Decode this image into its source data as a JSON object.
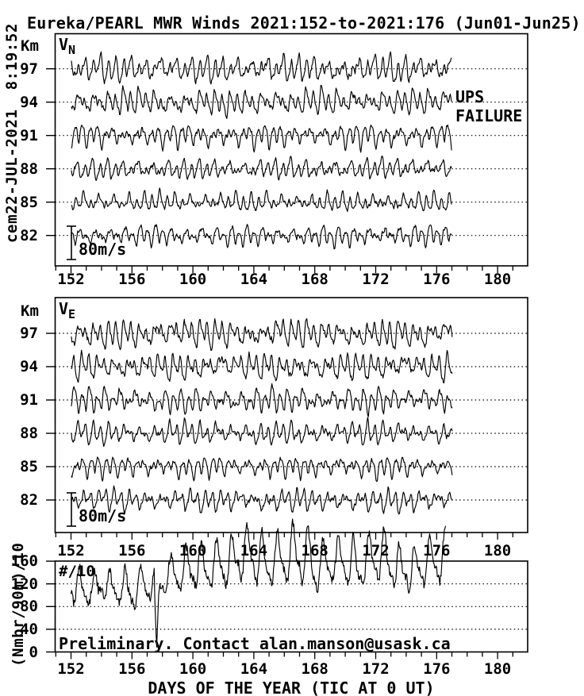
{
  "title": "Eureka/PEARL MWR Winds 2021:152-to-2021:176 (Jun01-Jun25)",
  "created_stamp": "cem22-JUL-2021  8:19:52",
  "x_axis": {
    "label": "DAYS OF THE YEAR (TIC AT 0 UT)",
    "major_ticks": [
      152,
      156,
      160,
      164,
      168,
      172,
      176,
      180
    ],
    "minor_step_days": 1,
    "range_days": [
      150.9,
      182.0
    ]
  },
  "wind_panels": [
    {
      "id": "vn",
      "var_label": "V",
      "var_sub": "N",
      "alt_unit": "Km",
      "altitude_ticks_km": [
        97,
        94,
        91,
        88,
        85,
        82
      ],
      "scale_bar_label": "80m/s",
      "scale_bar_value_m_s": 80,
      "annotation": "UPS\nFAILURE",
      "seed": 7
    },
    {
      "id": "ve",
      "var_label": "V",
      "var_sub": "E",
      "alt_unit": "Km",
      "altitude_ticks_km": [
        97,
        94,
        91,
        88,
        85,
        82
      ],
      "scale_bar_label": "80m/s",
      "scale_bar_value_m_s": 80,
      "annotation": "",
      "seed": 13
    }
  ],
  "count_panel": {
    "inner_label": "#/10",
    "y_axis_label": "(Nmbr/90m)/10",
    "y_ticks": [
      160,
      120,
      80,
      40,
      0
    ],
    "gridlines": [
      120,
      80,
      40
    ],
    "ylim": [
      0,
      160
    ],
    "note": "Preliminary. Contact alan.manson@usask.ca",
    "seed": 29
  },
  "colors": {
    "ink": "#000000",
    "paper": "#ffffff"
  },
  "chart_data": [
    {
      "type": "line",
      "panel": "V_N hourly winds vs day-of-year",
      "x_range": [
        152,
        177.0
      ],
      "sampling_per_day": 24,
      "y_baselines_km": [
        97,
        94,
        91,
        88,
        85,
        82
      ],
      "velocity_scale_bar_m_s": 80,
      "dominant_period_hours": 12,
      "amplitude_m_s_by_altitude": [
        44,
        41,
        37,
        33,
        31,
        33
      ],
      "data_gap": "traces stop near day 177 (UPS failure)"
    },
    {
      "type": "line",
      "panel": "V_E hourly winds vs day-of-year",
      "x_range": [
        152,
        177.05
      ],
      "sampling_per_day": 24,
      "y_baselines_km": [
        97,
        94,
        91,
        88,
        85,
        82
      ],
      "velocity_scale_bar_m_s": 80,
      "dominant_period_hours": 12,
      "amplitude_m_s_by_altitude": [
        46,
        43,
        40,
        36,
        34,
        36
      ],
      "data_gap": "traces stop near day 177 (UPS failure)"
    },
    {
      "type": "line",
      "panel": "meteor echo count (Nmbr/90m)/10 vs day-of-year",
      "x_range": [
        152,
        176.6
      ],
      "ylim": [
        0,
        160
      ],
      "period_hours": 24,
      "daily_min": [
        78,
        76,
        80,
        78,
        75,
        80,
        96,
        100,
        104,
        108,
        110,
        112,
        108,
        110,
        112,
        108,
        106,
        110,
        104,
        108,
        112,
        106,
        104,
        108,
        110,
        104
      ],
      "daily_max": [
        148,
        150,
        145,
        152,
        148,
        155,
        150,
        185,
        200,
        190,
        205,
        215,
        230,
        200,
        210,
        235,
        205,
        195,
        210,
        185,
        230,
        195,
        185,
        190,
        225,
        205
      ],
      "dropout": {
        "day": 157.62,
        "min_value": 5
      },
      "note": "peaks after day 159 overshoot the 160 axis top"
    }
  ]
}
